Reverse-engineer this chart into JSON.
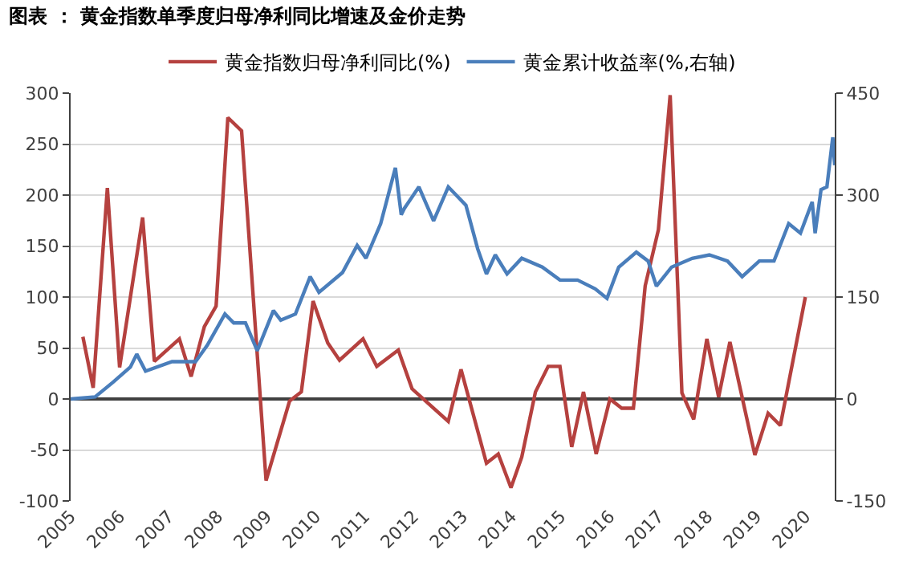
{
  "chart_data": {
    "type": "line",
    "title": "图表 ： 黄金指数单季度归母净利同比增速及金价走势",
    "xlim": [
      2005,
      2020.6
    ],
    "xticks": [
      2005,
      2006,
      2007,
      2008,
      2009,
      2010,
      2011,
      2012,
      2013,
      2014,
      2015,
      2016,
      2017,
      2018,
      2019,
      2020
    ],
    "ylim": [
      -100,
      300
    ],
    "yticks": [
      -100,
      -50,
      0,
      50,
      100,
      150,
      200,
      250,
      300
    ],
    "y2lim": [
      -150,
      450
    ],
    "y2ticks": [
      -150,
      0,
      150,
      300,
      450
    ],
    "grid": "y",
    "legend": "top",
    "marker": "none",
    "line_style": "solid",
    "series": [
      {
        "name": "黄金指数归母净利同比(%)",
        "color": "#b5413f",
        "x": [
          2005.25,
          2005.46,
          2005.75,
          2006.0,
          2006.47,
          2006.71,
          2007.22,
          2007.46,
          2007.73,
          2007.97,
          2008.21,
          2008.49,
          2008.99,
          2009.47,
          2009.71,
          2009.95,
          2010.25,
          2010.49,
          2010.97,
          2011.25,
          2011.69,
          2011.97,
          2012.71,
          2012.97,
          2013.49,
          2013.73,
          2013.99,
          2014.21,
          2014.49,
          2014.75,
          2014.99,
          2015.23,
          2015.47,
          2015.73,
          2016.01,
          2016.25,
          2016.49,
          2016.73,
          2017.0,
          2017.24,
          2017.48,
          2017.72,
          2017.99,
          2018.23,
          2018.46,
          2018.97,
          2019.24,
          2019.49,
          2020.0
        ],
        "values": [
          61,
          11,
          207,
          31,
          178,
          37,
          59,
          22,
          71,
          91,
          276,
          263,
          -80,
          -2,
          7,
          96,
          55,
          38,
          59,
          32,
          48,
          10,
          -22,
          29,
          -63,
          -54,
          -87,
          -57,
          7,
          32,
          32,
          -47,
          7,
          -54,
          0,
          -9,
          -9,
          111,
          166,
          298,
          6,
          -20,
          59,
          2,
          56,
          -55,
          -14,
          -26,
          100
        ]
      },
      {
        "name": "黄金累计收益率(%,右轴)",
        "color": "#4a7ebb",
        "axis": "y2",
        "x": [
          2005.0,
          2005.5,
          2005.87,
          2006.22,
          2006.35,
          2006.53,
          2007.07,
          2007.55,
          2007.79,
          2008.15,
          2008.33,
          2008.57,
          2008.81,
          2009.14,
          2009.29,
          2009.59,
          2009.89,
          2010.07,
          2010.55,
          2010.85,
          2011.03,
          2011.33,
          2011.63,
          2011.75,
          2011.81,
          2012.11,
          2012.41,
          2012.71,
          2013.07,
          2013.31,
          2013.49,
          2013.67,
          2013.91,
          2014.21,
          2014.63,
          2014.99,
          2015.35,
          2015.71,
          2015.95,
          2016.19,
          2016.55,
          2016.79,
          2016.96,
          2017.27,
          2017.69,
          2018.04,
          2018.41,
          2018.71,
          2019.06,
          2019.36,
          2019.66,
          2019.9,
          2020.14,
          2020.2,
          2020.32,
          2020.44,
          2020.56,
          2020.6
        ],
        "values": [
          0,
          3,
          25,
          47,
          66,
          41,
          55,
          55,
          79,
          125,
          112,
          112,
          71,
          130,
          116,
          125,
          180,
          157,
          186,
          226,
          207,
          258,
          340,
          271,
          280,
          312,
          262,
          312,
          285,
          221,
          184,
          212,
          184,
          207,
          194,
          175,
          175,
          162,
          148,
          194,
          216,
          203,
          166,
          194,
          207,
          212,
          203,
          180,
          203,
          203,
          258,
          244,
          290,
          244,
          308,
          312,
          385,
          344
        ]
      }
    ]
  }
}
